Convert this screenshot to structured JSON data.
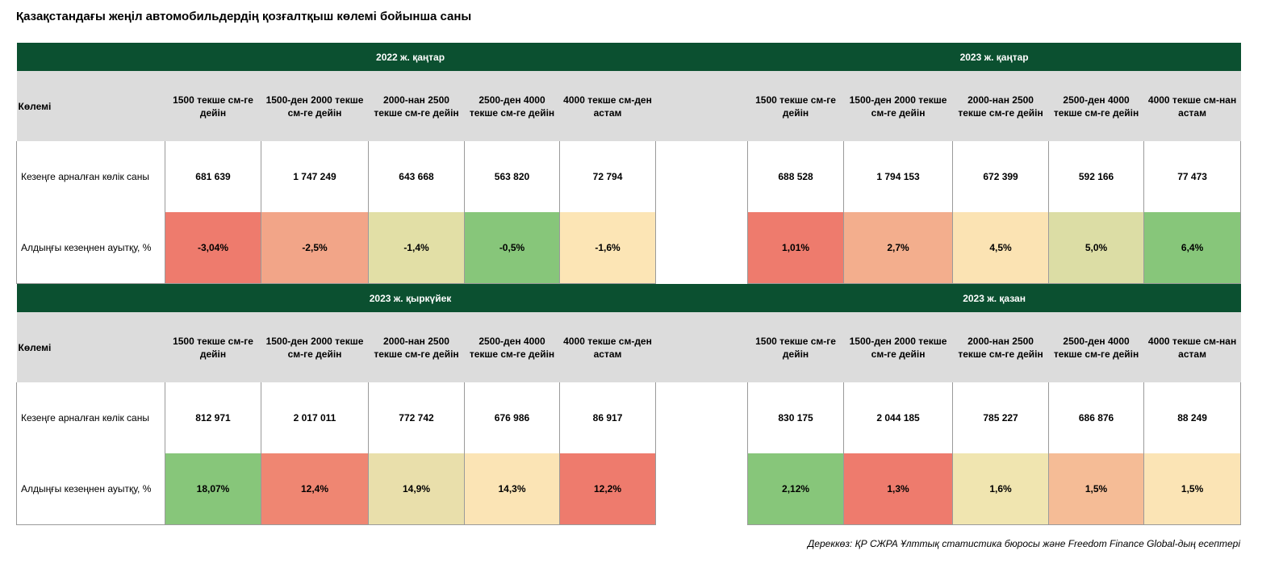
{
  "title": "Қазақстандағы жеңіл автомобильдердің қозғалтқыш көлемі бойынша саны",
  "row_labels": {
    "volume": "Көлемі",
    "count": "Кезеңге арналған көлік саны",
    "change": "Алдыңғы кезеңнен ауытқу, %"
  },
  "blocks": [
    {
      "left": {
        "period": "2022 ж. қаңтар",
        "columns": [
          "1500 текше см-ге дейін",
          "1500-ден 2000 текше см-ге дейін",
          "2000-нан 2500 текше см-ге дейін",
          "2500-ден 4000 текше см-ге дейін",
          "4000 текше см-ден астам"
        ],
        "counts": [
          "681 639",
          "1 747 249",
          "643 668",
          "563 820",
          "72 794"
        ],
        "changes": [
          "-3,04%",
          "-2,5%",
          "-1,4%",
          "-0,5%",
          "-1,6%"
        ],
        "change_colors": [
          "#ee7b6d",
          "#f2a588",
          "#e2dfa6",
          "#87c67a",
          "#fce5b5"
        ]
      },
      "right": {
        "period": "2023 ж. қаңтар",
        "columns": [
          "1500 текше см-ге дейін",
          "1500-ден 2000 текше см-ге дейін",
          "2000-нан 2500 текше см-ге дейін",
          "2500-ден 4000 текше см-ге дейін",
          "4000 текше см-нан астам"
        ],
        "counts": [
          "688 528",
          "1 794 153",
          "672 399",
          "592 166",
          "77 473"
        ],
        "changes": [
          "1,01%",
          "2,7%",
          "4,5%",
          "5,0%",
          "6,4%"
        ],
        "change_colors": [
          "#ee7b6d",
          "#f3ae8d",
          "#fbe3b3",
          "#dcdda5",
          "#87c67a"
        ]
      }
    },
    {
      "left": {
        "period": "2023 ж. қыркүйек",
        "columns": [
          "1500 текше см-ге дейін",
          "1500-ден 2000 текше см-ге дейін",
          "2000-нан 2500 текше см-ге дейін",
          "2500-ден 4000 текше см-ге дейін",
          "4000 текше см-ден астам"
        ],
        "counts": [
          "812 971",
          "2 017 011",
          "772 742",
          "676 986",
          "86 917"
        ],
        "changes": [
          "18,07%",
          "12,4%",
          "14,9%",
          "14,3%",
          "12,2%"
        ],
        "change_colors": [
          "#87c67a",
          "#ef8672",
          "#e9dfab",
          "#fbe4b5",
          "#ee7b6d"
        ]
      },
      "right": {
        "period": "2023 ж. қазан",
        "columns": [
          "1500 текше см-ге дейін",
          "1500-ден 2000 текше см-ге дейін",
          "2000-нан 2500 текше см-ге дейін",
          "2500-ден 4000 текше см-ге дейін",
          "4000 текше см-нан астам"
        ],
        "counts": [
          "830 175",
          "2 044 185",
          "785 227",
          "686 876",
          "88 249"
        ],
        "changes": [
          "2,12%",
          "1,3%",
          "1,6%",
          "1,5%",
          "1,5%"
        ],
        "change_colors": [
          "#87c67a",
          "#ee7b6d",
          "#f0e5b0",
          "#f5bc96",
          "#fbe4b5"
        ]
      }
    }
  ],
  "source": "Дереккөз: ҚР СЖРА Ұлттық статистика бюросы және Freedom Finance Global-дың есептері"
}
